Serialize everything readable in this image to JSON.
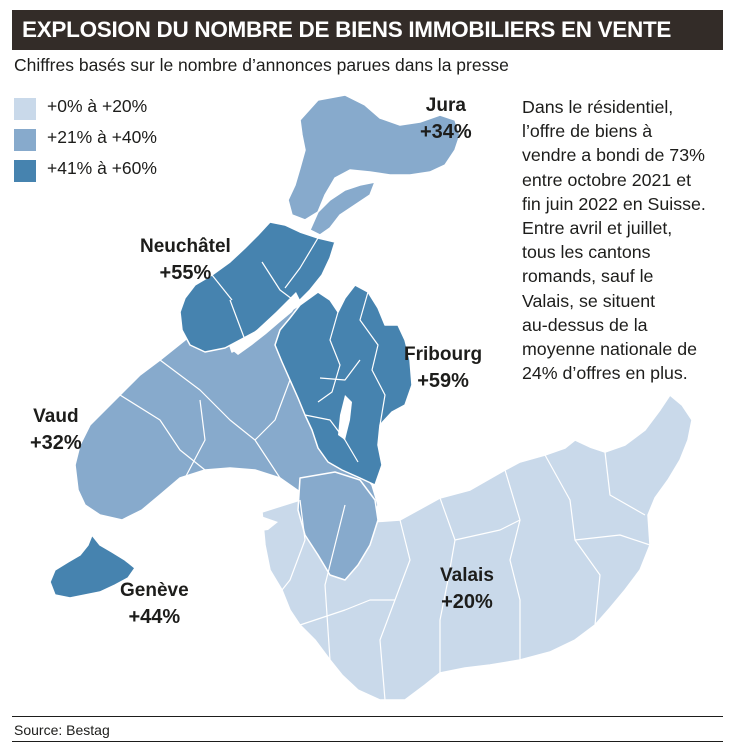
{
  "title": "EXPLOSION DU NOMBRE DE BIENS IMMOBILIERS EN VENTE",
  "subtitle": "Chiffres basés sur le nombre d’annonces parues dans la presse",
  "legend": [
    {
      "label": "+0% à +20%",
      "color": "#c9d9ea"
    },
    {
      "label": "+21% à +40%",
      "color": "#87aacc"
    },
    {
      "label": "+41% à +60%",
      "color": "#4683af"
    }
  ],
  "colors": {
    "water": "#ffffff",
    "border": "#ffffff",
    "title_bg": "#332c28"
  },
  "cantons": [
    {
      "name": "Jura",
      "value": "+34%",
      "change_pct": 34
    },
    {
      "name": "Neuchâtel",
      "value": "+55%",
      "change_pct": 55
    },
    {
      "name": "Fribourg",
      "value": "+59%",
      "change_pct": 59
    },
    {
      "name": "Vaud",
      "value": "+32%",
      "change_pct": 32
    },
    {
      "name": "Genève",
      "value": "+44%",
      "change_pct": 44
    },
    {
      "name": "Valais",
      "value": "+20%",
      "change_pct": 20
    }
  ],
  "text_lines": [
    "Dans le résidentiel,",
    "l’offre de biens à",
    "vendre a bondi de 73%",
    "entre octobre 2021 et",
    "fin juin 2022 en Suisse.",
    "Entre avril et juillet,",
    "tous les cantons",
    "romands, sauf le",
    "Valais, se situent",
    "au-dessus de la",
    "moyenne nationale de",
    "24% d’offres en plus."
  ],
  "source": "Source: Bestag"
}
